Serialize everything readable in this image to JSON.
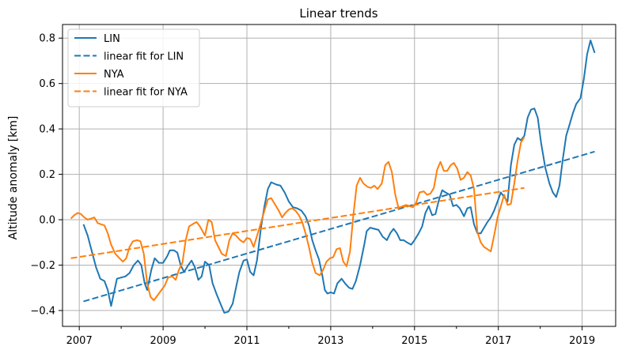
{
  "chart_data": {
    "type": "line",
    "title": "Linear trends",
    "xlabel": "",
    "ylabel": "Altitude anomaly [km]",
    "xlim": [
      2006.6,
      2019.8
    ],
    "ylim": [
      -0.47,
      0.86
    ],
    "x_ticks": [
      2007,
      2009,
      2011,
      2013,
      2015,
      2017,
      2019
    ],
    "x_tick_labels": [
      "2007",
      "2009",
      "2011",
      "2013",
      "2015",
      "2017",
      "2019"
    ],
    "x_minor_ticks": [
      2008,
      2010,
      2012,
      2014,
      2016,
      2018
    ],
    "y_ticks": [
      -0.4,
      -0.2,
      0.0,
      0.2,
      0.4,
      0.6,
      0.8
    ],
    "y_tick_labels": [
      "−0.4",
      "−0.2",
      "0.0",
      "0.2",
      "0.4",
      "0.6",
      "0.8"
    ],
    "grid": true,
    "legend_position": "top-left",
    "series": [
      {
        "name": "LIN",
        "color": "#1f77b4",
        "style": "solid",
        "points": [
          [
            2007.1,
            -0.02
          ],
          [
            2007.2,
            -0.07
          ],
          [
            2007.3,
            -0.14
          ],
          [
            2007.4,
            -0.21
          ],
          [
            2007.5,
            -0.26
          ],
          [
            2007.6,
            -0.27
          ],
          [
            2007.68,
            -0.31
          ],
          [
            2007.76,
            -0.38
          ],
          [
            2007.84,
            -0.31
          ],
          [
            2007.9,
            -0.26
          ],
          [
            2008.0,
            -0.255
          ],
          [
            2008.1,
            -0.25
          ],
          [
            2008.2,
            -0.235
          ],
          [
            2008.3,
            -0.2
          ],
          [
            2008.4,
            -0.18
          ],
          [
            2008.48,
            -0.2
          ],
          [
            2008.56,
            -0.28
          ],
          [
            2008.62,
            -0.31
          ],
          [
            2008.72,
            -0.22
          ],
          [
            2008.8,
            -0.17
          ],
          [
            2008.9,
            -0.19
          ],
          [
            2009.0,
            -0.19
          ],
          [
            2009.1,
            -0.16
          ],
          [
            2009.16,
            -0.135
          ],
          [
            2009.26,
            -0.135
          ],
          [
            2009.34,
            -0.145
          ],
          [
            2009.42,
            -0.2
          ],
          [
            2009.5,
            -0.23
          ],
          [
            2009.6,
            -0.2
          ],
          [
            2009.68,
            -0.18
          ],
          [
            2009.76,
            -0.21
          ],
          [
            2009.84,
            -0.265
          ],
          [
            2009.92,
            -0.25
          ],
          [
            2010.0,
            -0.185
          ],
          [
            2010.1,
            -0.2
          ],
          [
            2010.18,
            -0.28
          ],
          [
            2010.28,
            -0.33
          ],
          [
            2010.38,
            -0.375
          ],
          [
            2010.46,
            -0.41
          ],
          [
            2010.56,
            -0.405
          ],
          [
            2010.66,
            -0.37
          ],
          [
            2010.74,
            -0.3
          ],
          [
            2010.82,
            -0.23
          ],
          [
            2010.92,
            -0.18
          ],
          [
            2011.0,
            -0.175
          ],
          [
            2011.08,
            -0.23
          ],
          [
            2011.16,
            -0.245
          ],
          [
            2011.24,
            -0.18
          ],
          [
            2011.34,
            -0.03
          ],
          [
            2011.42,
            0.06
          ],
          [
            2011.5,
            0.135
          ],
          [
            2011.58,
            0.165
          ],
          [
            2011.7,
            0.155
          ],
          [
            2011.8,
            0.15
          ],
          [
            2011.9,
            0.12
          ],
          [
            2012.0,
            0.08
          ],
          [
            2012.1,
            0.055
          ],
          [
            2012.2,
            0.05
          ],
          [
            2012.3,
            0.04
          ],
          [
            2012.4,
            0.015
          ],
          [
            2012.48,
            -0.025
          ],
          [
            2012.56,
            -0.09
          ],
          [
            2012.64,
            -0.135
          ],
          [
            2012.72,
            -0.175
          ],
          [
            2012.8,
            -0.245
          ],
          [
            2012.86,
            -0.31
          ],
          [
            2012.92,
            -0.325
          ],
          [
            2013.0,
            -0.32
          ],
          [
            2013.08,
            -0.325
          ],
          [
            2013.16,
            -0.28
          ],
          [
            2013.26,
            -0.26
          ],
          [
            2013.34,
            -0.28
          ],
          [
            2013.44,
            -0.3
          ],
          [
            2013.52,
            -0.305
          ],
          [
            2013.6,
            -0.27
          ],
          [
            2013.7,
            -0.2
          ],
          [
            2013.8,
            -0.11
          ],
          [
            2013.86,
            -0.05
          ],
          [
            2013.94,
            -0.035
          ],
          [
            2014.04,
            -0.04
          ],
          [
            2014.14,
            -0.045
          ],
          [
            2014.24,
            -0.075
          ],
          [
            2014.34,
            -0.09
          ],
          [
            2014.42,
            -0.06
          ],
          [
            2014.5,
            -0.04
          ],
          [
            2014.58,
            -0.06
          ],
          [
            2014.66,
            -0.09
          ],
          [
            2014.74,
            -0.09
          ],
          [
            2014.82,
            -0.1
          ],
          [
            2014.92,
            -0.11
          ],
          [
            2015.0,
            -0.09
          ],
          [
            2015.1,
            -0.06
          ],
          [
            2015.18,
            -0.03
          ],
          [
            2015.26,
            0.03
          ],
          [
            2015.34,
            0.06
          ],
          [
            2015.42,
            0.02
          ],
          [
            2015.5,
            0.025
          ],
          [
            2015.58,
            0.085
          ],
          [
            2015.66,
            0.13
          ],
          [
            2015.74,
            0.12
          ],
          [
            2015.84,
            0.11
          ],
          [
            2015.92,
            0.06
          ],
          [
            2016.0,
            0.065
          ],
          [
            2016.08,
            0.05
          ],
          [
            2016.18,
            0.015
          ],
          [
            2016.26,
            0.05
          ],
          [
            2016.34,
            0.055
          ],
          [
            2016.42,
            -0.02
          ],
          [
            2016.5,
            -0.06
          ],
          [
            2016.58,
            -0.06
          ],
          [
            2016.66,
            -0.035
          ],
          [
            2016.74,
            -0.01
          ],
          [
            2016.82,
            0.01
          ],
          [
            2016.9,
            0.04
          ],
          [
            2016.98,
            0.08
          ],
          [
            2017.06,
            0.12
          ],
          [
            2017.14,
            0.1
          ],
          [
            2017.22,
            0.08
          ],
          [
            2017.3,
            0.24
          ],
          [
            2017.38,
            0.33
          ],
          [
            2017.46,
            0.36
          ],
          [
            2017.54,
            0.35
          ],
          [
            2017.62,
            0.37
          ],
          [
            2017.7,
            0.45
          ],
          [
            2017.78,
            0.485
          ],
          [
            2017.86,
            0.49
          ],
          [
            2017.94,
            0.45
          ],
          [
            2018.02,
            0.34
          ],
          [
            2018.12,
            0.23
          ],
          [
            2018.22,
            0.16
          ],
          [
            2018.3,
            0.12
          ],
          [
            2018.38,
            0.1
          ],
          [
            2018.46,
            0.15
          ],
          [
            2018.54,
            0.27
          ],
          [
            2018.62,
            0.37
          ],
          [
            2018.7,
            0.42
          ],
          [
            2018.78,
            0.47
          ],
          [
            2018.86,
            0.51
          ],
          [
            2018.96,
            0.535
          ],
          [
            2019.04,
            0.62
          ],
          [
            2019.12,
            0.73
          ],
          [
            2019.2,
            0.79
          ],
          [
            2019.3,
            0.735
          ]
        ]
      },
      {
        "name": "linear fit for LIN",
        "color": "#1f77b4",
        "style": "dashed",
        "points": [
          [
            2007.1,
            -0.36
          ],
          [
            2019.3,
            0.3
          ]
        ]
      },
      {
        "name": "NYA",
        "color": "#ff7f0e",
        "style": "solid",
        "points": [
          [
            2006.8,
            0.005
          ],
          [
            2006.88,
            0.02
          ],
          [
            2006.96,
            0.03
          ],
          [
            2007.04,
            0.025
          ],
          [
            2007.12,
            0.01
          ],
          [
            2007.2,
            0.0
          ],
          [
            2007.28,
            0.005
          ],
          [
            2007.36,
            0.01
          ],
          [
            2007.44,
            -0.015
          ],
          [
            2007.52,
            -0.02
          ],
          [
            2007.6,
            -0.025
          ],
          [
            2007.68,
            -0.06
          ],
          [
            2007.76,
            -0.11
          ],
          [
            2007.86,
            -0.15
          ],
          [
            2007.96,
            -0.17
          ],
          [
            2008.04,
            -0.185
          ],
          [
            2008.12,
            -0.17
          ],
          [
            2008.2,
            -0.12
          ],
          [
            2008.28,
            -0.095
          ],
          [
            2008.38,
            -0.09
          ],
          [
            2008.46,
            -0.095
          ],
          [
            2008.54,
            -0.15
          ],
          [
            2008.62,
            -0.28
          ],
          [
            2008.7,
            -0.34
          ],
          [
            2008.78,
            -0.355
          ],
          [
            2008.88,
            -0.33
          ],
          [
            2008.96,
            -0.31
          ],
          [
            2009.04,
            -0.29
          ],
          [
            2009.12,
            -0.255
          ],
          [
            2009.22,
            -0.25
          ],
          [
            2009.3,
            -0.265
          ],
          [
            2009.38,
            -0.22
          ],
          [
            2009.46,
            -0.19
          ],
          [
            2009.54,
            -0.09
          ],
          [
            2009.62,
            -0.03
          ],
          [
            2009.7,
            -0.02
          ],
          [
            2009.8,
            -0.01
          ],
          [
            2009.88,
            -0.03
          ],
          [
            2010.0,
            -0.07
          ],
          [
            2010.08,
            0.0
          ],
          [
            2010.16,
            -0.01
          ],
          [
            2010.24,
            -0.09
          ],
          [
            2010.32,
            -0.12
          ],
          [
            2010.4,
            -0.15
          ],
          [
            2010.5,
            -0.16
          ],
          [
            2010.58,
            -0.09
          ],
          [
            2010.66,
            -0.06
          ],
          [
            2010.74,
            -0.07
          ],
          [
            2010.84,
            -0.09
          ],
          [
            2010.92,
            -0.1
          ],
          [
            2011.0,
            -0.08
          ],
          [
            2011.08,
            -0.085
          ],
          [
            2011.16,
            -0.12
          ],
          [
            2011.26,
            -0.06
          ],
          [
            2011.34,
            -0.01
          ],
          [
            2011.42,
            0.04
          ],
          [
            2011.5,
            0.09
          ],
          [
            2011.58,
            0.095
          ],
          [
            2011.66,
            0.07
          ],
          [
            2011.76,
            0.04
          ],
          [
            2011.84,
            0.01
          ],
          [
            2011.92,
            0.03
          ],
          [
            2012.0,
            0.045
          ],
          [
            2012.08,
            0.05
          ],
          [
            2012.16,
            0.04
          ],
          [
            2012.24,
            0.02
          ],
          [
            2012.32,
            -0.01
          ],
          [
            2012.4,
            -0.06
          ],
          [
            2012.48,
            -0.12
          ],
          [
            2012.56,
            -0.19
          ],
          [
            2012.64,
            -0.235
          ],
          [
            2012.74,
            -0.245
          ],
          [
            2012.82,
            -0.22
          ],
          [
            2012.9,
            -0.185
          ],
          [
            2012.98,
            -0.17
          ],
          [
            2013.06,
            -0.165
          ],
          [
            2013.14,
            -0.13
          ],
          [
            2013.22,
            -0.125
          ],
          [
            2013.3,
            -0.185
          ],
          [
            2013.38,
            -0.205
          ],
          [
            2013.46,
            -0.14
          ],
          [
            2013.54,
            0.02
          ],
          [
            2013.62,
            0.15
          ],
          [
            2013.7,
            0.185
          ],
          [
            2013.78,
            0.16
          ],
          [
            2013.88,
            0.145
          ],
          [
            2013.96,
            0.14
          ],
          [
            2014.04,
            0.15
          ],
          [
            2014.12,
            0.135
          ],
          [
            2014.22,
            0.16
          ],
          [
            2014.3,
            0.24
          ],
          [
            2014.38,
            0.255
          ],
          [
            2014.46,
            0.21
          ],
          [
            2014.54,
            0.11
          ],
          [
            2014.62,
            0.05
          ],
          [
            2014.72,
            0.06
          ],
          [
            2014.8,
            0.065
          ],
          [
            2014.88,
            0.06
          ],
          [
            2014.96,
            0.055
          ],
          [
            2015.04,
            0.075
          ],
          [
            2015.12,
            0.12
          ],
          [
            2015.22,
            0.125
          ],
          [
            2015.3,
            0.11
          ],
          [
            2015.38,
            0.115
          ],
          [
            2015.46,
            0.14
          ],
          [
            2015.54,
            0.22
          ],
          [
            2015.62,
            0.255
          ],
          [
            2015.7,
            0.215
          ],
          [
            2015.78,
            0.215
          ],
          [
            2015.86,
            0.24
          ],
          [
            2015.94,
            0.25
          ],
          [
            2016.02,
            0.225
          ],
          [
            2016.1,
            0.175
          ],
          [
            2016.18,
            0.185
          ],
          [
            2016.26,
            0.21
          ],
          [
            2016.34,
            0.195
          ],
          [
            2016.42,
            0.135
          ],
          [
            2016.5,
            -0.055
          ],
          [
            2016.58,
            -0.1
          ],
          [
            2016.66,
            -0.12
          ],
          [
            2016.74,
            -0.13
          ],
          [
            2016.82,
            -0.14
          ],
          [
            2016.9,
            -0.07
          ],
          [
            2016.98,
            0.01
          ],
          [
            2017.06,
            0.06
          ],
          [
            2017.14,
            0.11
          ],
          [
            2017.22,
            0.065
          ],
          [
            2017.3,
            0.07
          ],
          [
            2017.38,
            0.16
          ],
          [
            2017.46,
            0.26
          ],
          [
            2017.54,
            0.34
          ],
          [
            2017.62,
            0.365
          ]
        ]
      },
      {
        "name": "linear fit for NYA",
        "color": "#ff7f0e",
        "style": "dashed",
        "points": [
          [
            2006.8,
            -0.17
          ],
          [
            2017.62,
            0.14
          ]
        ]
      }
    ]
  }
}
